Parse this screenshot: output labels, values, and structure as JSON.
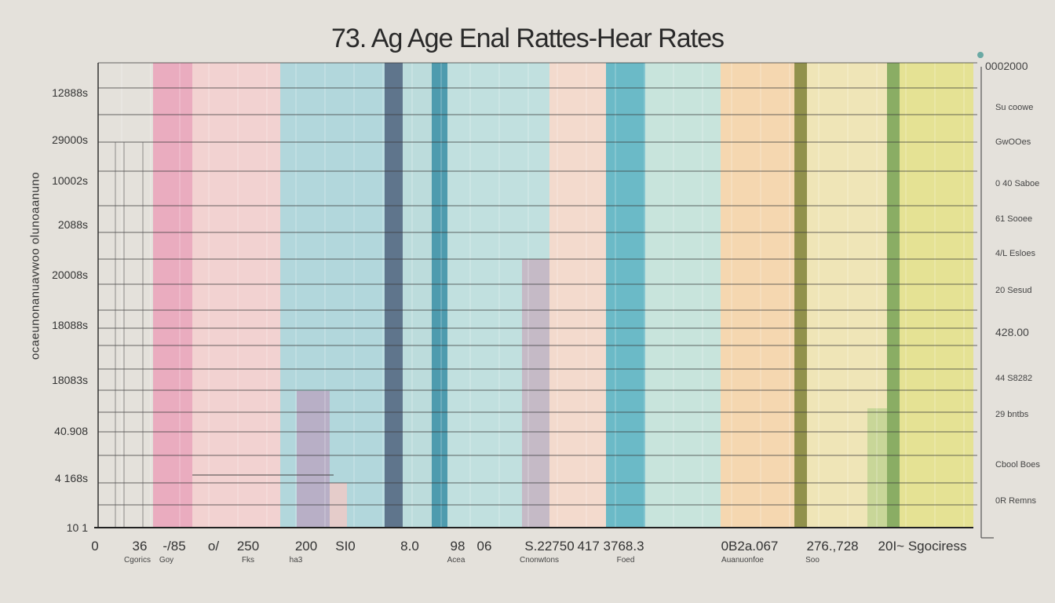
{
  "chart_data": {
    "type": "bar",
    "title": "73. Ag Age Enal Rattes-Hear Rates",
    "ylabel": "ocaeunonanuavwoo olunoaanuno",
    "y_tick_labels": [
      "12888s",
      "29000s",
      "10002s",
      "2088s",
      "20008s",
      "18088s",
      "18083s",
      "40.908",
      "4 168s",
      "10 1"
    ],
    "right_tick_labels": [
      "0002000",
      "Su coowe",
      "GwOOes",
      "0 40 Saboe",
      "61 Sooee",
      "4/L Esloes",
      "20 Sesud",
      "428.00",
      "44 S8282",
      "29 bntbs",
      "Cbool Boes",
      "0R Remns"
    ],
    "x_tick_labels": [
      "0",
      "36",
      "-/85",
      "o/",
      "250",
      "200",
      "SI0",
      "8.0",
      "98",
      "06",
      "S.22750",
      "417 3768.3",
      "0B2a.067",
      "27",
      "6.,728",
      "20I~ Sgociress"
    ],
    "x_sub_labels": [
      "Cgorics",
      "Goy",
      "Fks",
      "ha3",
      "Acea",
      "Cnonwtons",
      "Foed",
      "Auanuonfoe",
      "Soo"
    ],
    "grid": true,
    "bands": [
      {
        "color": "#eaa6bb"
      },
      {
        "color": "#f3d0cf"
      },
      {
        "color": "#acd6dc"
      },
      {
        "color": "#506983"
      },
      {
        "color": "#b7dcdb"
      },
      {
        "color": "#3d93a8"
      },
      {
        "color": "#bde0df"
      },
      {
        "color": "#f4d9cb"
      },
      {
        "color": "#5db6c4"
      },
      {
        "color": "#c4e4dc"
      },
      {
        "color": "#f6d6ab"
      },
      {
        "color": "#87883c"
      },
      {
        "color": "#efe6b3"
      },
      {
        "color": "#7fa756"
      },
      {
        "color": "#e4e28c"
      }
    ]
  }
}
